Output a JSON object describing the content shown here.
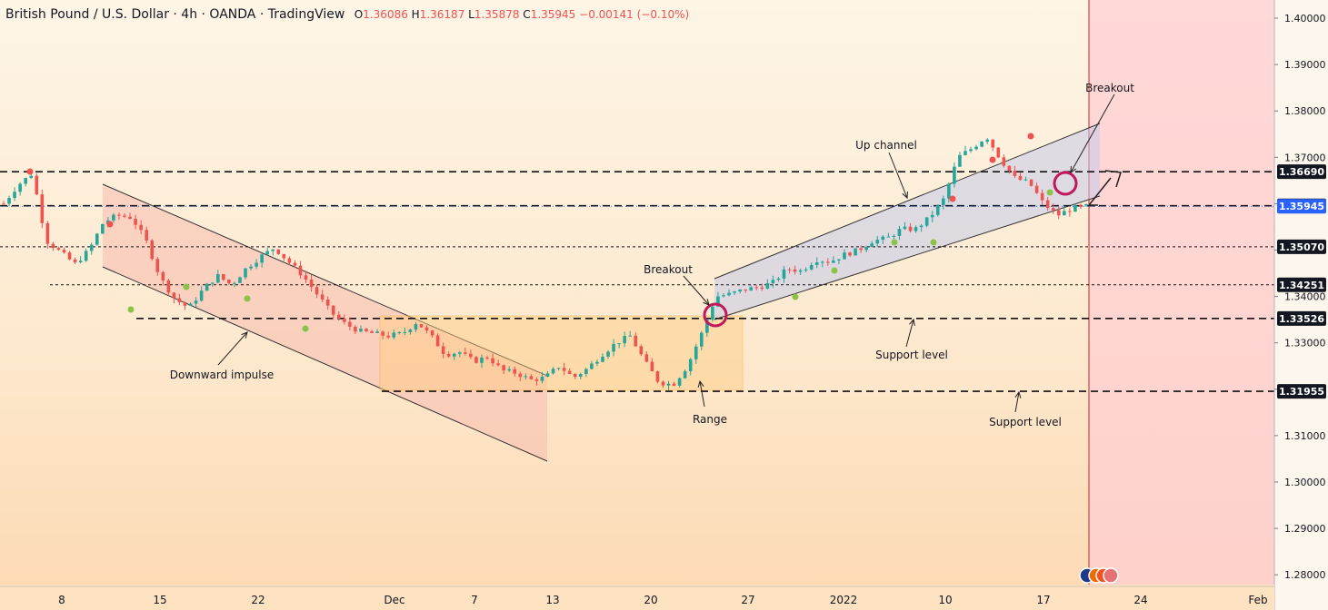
{
  "header": {
    "title": "British Pound / U.S. Dollar · 4h · OANDA · TradingView",
    "open_label": "O",
    "open": "1.36086",
    "high_label": "H",
    "high": "1.36187",
    "low_label": "L",
    "low": "1.35878",
    "close_label": "C",
    "close": "1.35945",
    "change": "−0.00141 (−0.10%)"
  },
  "chart_data": {
    "type": "candlestick",
    "symbol": "GBPUSD",
    "timeframe": "4h",
    "ylim": [
      1.2745,
      1.4032
    ],
    "y_ticks": [
      "1.40000",
      "1.39000",
      "1.38000",
      "1.37000",
      "1.36000",
      "1.35000",
      "1.34000",
      "1.33000",
      "1.32000",
      "1.31000",
      "1.30000",
      "1.29000",
      "1.28000"
    ],
    "x_ticks": [
      "8",
      "15",
      "22",
      "Dec",
      "7",
      "13",
      "20",
      "27",
      "2022",
      "10",
      "17",
      "24",
      "Feb"
    ],
    "last_price": "1.35945",
    "price_levels": [
      {
        "label": "1.36690",
        "value": 1.3669,
        "style": "dashed"
      },
      {
        "label": "1.35955",
        "value": 1.35955,
        "style": "dashed"
      },
      {
        "label": "1.35070",
        "value": 1.3507,
        "style": "dashed"
      },
      {
        "label": "1.34251",
        "value": 1.34251,
        "style": "dashed"
      },
      {
        "label": "1.33526",
        "value": 1.33526,
        "style": "dashed"
      },
      {
        "label": "1.31955",
        "value": 1.31955,
        "style": "dashed"
      }
    ],
    "price_path": [
      [
        0,
        1.36
      ],
      [
        1,
        1.364
      ],
      [
        2,
        1.3665
      ],
      [
        3,
        1.352
      ],
      [
        4,
        1.3495
      ],
      [
        5,
        1.347
      ],
      [
        6,
        1.35
      ],
      [
        7,
        1.356
      ],
      [
        8,
        1.3575
      ],
      [
        9,
        1.357
      ],
      [
        10,
        1.352
      ],
      [
        11,
        1.344
      ],
      [
        12,
        1.3395
      ],
      [
        13,
        1.3375
      ],
      [
        14,
        1.3415
      ],
      [
        15,
        1.3445
      ],
      [
        16,
        1.3425
      ],
      [
        17,
        1.346
      ],
      [
        18,
        1.3485
      ],
      [
        19,
        1.3505
      ],
      [
        20,
        1.3475
      ],
      [
        21,
        1.3445
      ],
      [
        22,
        1.3405
      ],
      [
        23,
        1.3365
      ],
      [
        24,
        1.334
      ],
      [
        25,
        1.3325
      ],
      [
        26,
        1.332
      ],
      [
        27,
        1.3315
      ],
      [
        28,
        1.332
      ],
      [
        29,
        1.3345
      ],
      [
        30,
        1.3315
      ],
      [
        31,
        1.3275
      ],
      [
        32,
        1.328
      ],
      [
        33,
        1.326
      ],
      [
        34,
        1.327
      ],
      [
        35,
        1.324
      ],
      [
        36,
        1.3235
      ],
      [
        37,
        1.322
      ],
      [
        38,
        1.3225
      ],
      [
        39,
        1.325
      ],
      [
        40,
        1.3225
      ],
      [
        41,
        1.3245
      ],
      [
        42,
        1.3275
      ],
      [
        43,
        1.33
      ],
      [
        44,
        1.3315
      ],
      [
        45,
        1.326
      ],
      [
        46,
        1.3215
      ],
      [
        47,
        1.321
      ],
      [
        48,
        1.325
      ],
      [
        49,
        1.332
      ],
      [
        50,
        1.34
      ],
      [
        51,
        1.3405
      ],
      [
        52,
        1.3415
      ],
      [
        53,
        1.342
      ],
      [
        54,
        1.343
      ],
      [
        55,
        1.346
      ],
      [
        56,
        1.3455
      ],
      [
        57,
        1.348
      ],
      [
        58,
        1.3475
      ],
      [
        59,
        1.349
      ],
      [
        60,
        1.35
      ],
      [
        61,
        1.352
      ],
      [
        62,
        1.3525
      ],
      [
        63,
        1.3545
      ],
      [
        64,
        1.3545
      ],
      [
        65,
        1.357
      ],
      [
        66,
        1.361
      ],
      [
        67,
        1.37
      ],
      [
        68,
        1.372
      ],
      [
        69,
        1.3745
      ],
      [
        70,
        1.3695
      ],
      [
        71,
        1.3655
      ],
      [
        72,
        1.3645
      ],
      [
        73,
        1.36
      ],
      [
        74,
        1.3575
      ],
      [
        75,
        1.359
      ],
      [
        76,
        1.3594
      ]
    ],
    "annotations": [
      {
        "text": "Downward impulse"
      },
      {
        "text": "Range"
      },
      {
        "text": "Breakout"
      },
      {
        "text": "Up channel"
      },
      {
        "text": "Support level"
      },
      {
        "text": "Support level"
      },
      {
        "text": "Breakout"
      }
    ],
    "colors": {
      "up": "#26a69a",
      "down": "#ef5350",
      "channel": "#c5cae9",
      "range": "#ffcc80",
      "descending": "#f8bbae",
      "future": "#ffcdd2",
      "last_price": "#2962ff",
      "marker": "#c2185b"
    }
  }
}
